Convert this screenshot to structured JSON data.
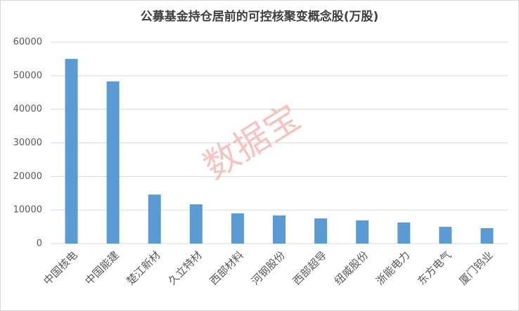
{
  "chart_data": {
    "type": "bar",
    "title": "公募基金持仓居前的可控核聚变概念股(万股)",
    "categories": [
      "中国核电",
      "中国能建",
      "楚江新材",
      "久立特材",
      "西部材料",
      "河钢股份",
      "西部超导",
      "纽威股份",
      "浙能电力",
      "东方电气",
      "厦门钨业"
    ],
    "values": [
      55000,
      48300,
      14600,
      11700,
      9000,
      8400,
      7500,
      6900,
      6300,
      5000,
      4600
    ],
    "color": "#5b9bd5",
    "ylim": [
      0,
      60000
    ],
    "yticks": [
      0,
      10000,
      20000,
      30000,
      40000,
      50000,
      60000
    ],
    "grid": true,
    "watermark": "数据宝"
  }
}
